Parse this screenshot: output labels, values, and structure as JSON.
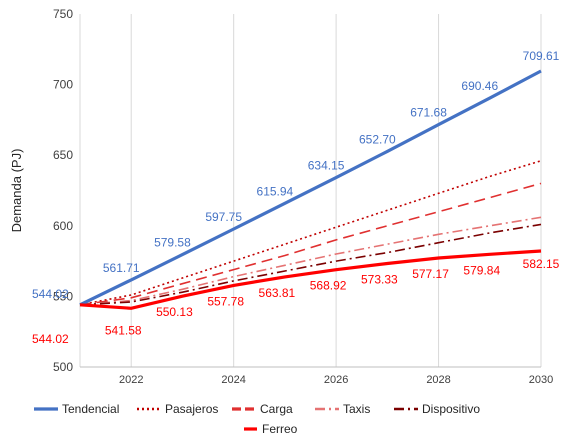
{
  "chart_data": {
    "type": "line",
    "title": "",
    "xlabel": "",
    "ylabel": "Demanda (PJ)",
    "x": [
      2021,
      2022,
      2023,
      2024,
      2025,
      2026,
      2027,
      2028,
      2029,
      2030
    ],
    "xticks": [
      "2022",
      "2024",
      "2026",
      "2028",
      "2030"
    ],
    "yticks": [
      "500",
      "550",
      "600",
      "650",
      "700",
      "750"
    ],
    "ylim": [
      500,
      750
    ],
    "xlim": [
      2021,
      2030
    ],
    "grid": "vertical",
    "legend_position": "bottom",
    "series": [
      {
        "name": "Tendencial",
        "color": "#4472c4",
        "style": "solid",
        "values": [
          544.02,
          561.71,
          579.58,
          597.75,
          615.94,
          634.15,
          652.7,
          671.68,
          690.46,
          709.61
        ],
        "labels": [
          "544.02",
          "561.71",
          "579.58",
          "597.75",
          "615.94",
          "634.15",
          "652.70",
          "671.68",
          "690.46",
          "709.61"
        ]
      },
      {
        "name": "Pasajeros",
        "color": "#c00000",
        "style": "dotted",
        "values": [
          544.02,
          551,
          563,
          575,
          587,
          599,
          611,
          623,
          635,
          646
        ]
      },
      {
        "name": "Carga",
        "color": "#e03030",
        "style": "dashed",
        "values": [
          544.02,
          549,
          559,
          569,
          579,
          590,
          600,
          610,
          620,
          630
        ]
      },
      {
        "name": "Taxis",
        "color": "#e57373",
        "style": "dashdot",
        "values": [
          544.02,
          547,
          555,
          564,
          572,
          580,
          587,
          594,
          600,
          606
        ]
      },
      {
        "name": "Dispositivo",
        "color": "#7b0000",
        "style": "dashdot",
        "values": [
          544.02,
          546,
          553,
          561,
          568,
          575,
          581,
          588,
          595,
          601
        ]
      },
      {
        "name": "Ferreo",
        "color": "#ff0000",
        "style": "solid",
        "values": [
          544.02,
          541.58,
          550.13,
          557.78,
          563.81,
          568.92,
          573.33,
          577.17,
          579.84,
          582.15
        ],
        "labels": [
          "544.02",
          "541.58",
          "550.13",
          "557.78",
          "563.81",
          "568.92",
          "573.33",
          "577.17",
          "579.84",
          "582.15"
        ]
      }
    ]
  }
}
